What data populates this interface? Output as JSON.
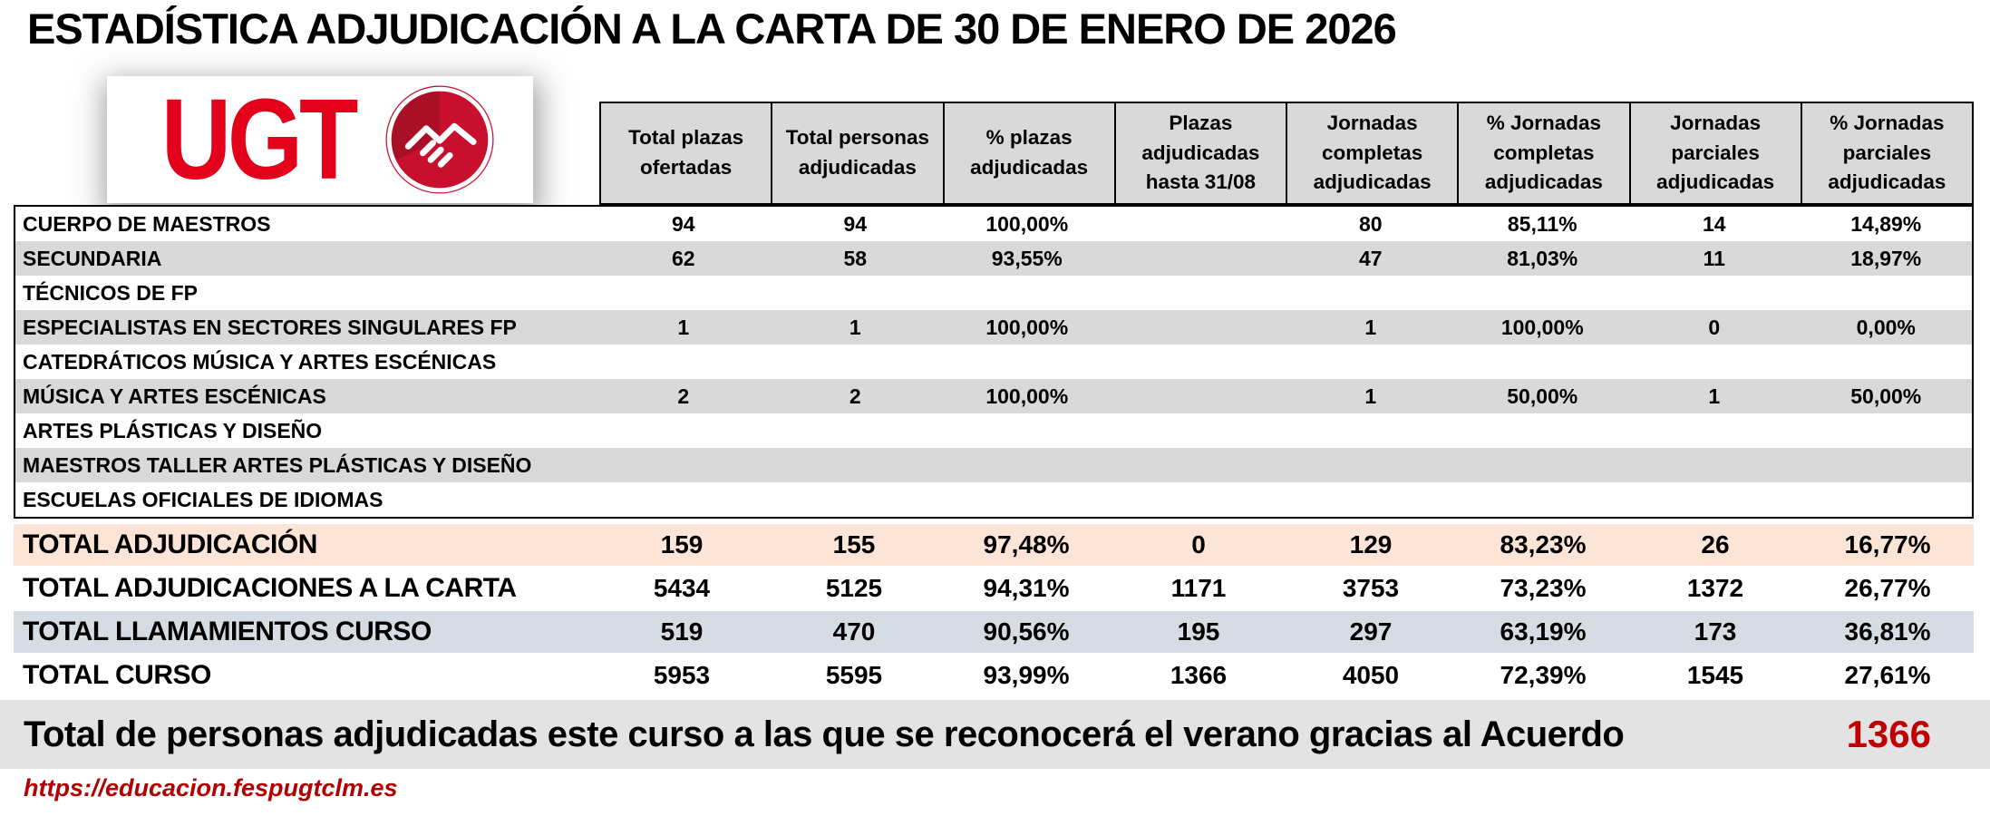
{
  "page": {
    "title": "ESTADÍSTICA ADJUDICACIÓN A LA CARTA DE 30 DE ENERO DE 2026"
  },
  "logo": {
    "text": "UGT",
    "icon": "handshake"
  },
  "table": {
    "column_headers": [
      "Total plazas ofertadas",
      "Total personas adjudicadas",
      "% plazas adjudicadas",
      "Plazas adjudicadas hasta 31/08",
      "Jornadas completas adjudicadas",
      "% Jornadas completas adjudicadas",
      "Jornadas parciales adjudicadas",
      "% Jornadas parciales adjudicadas"
    ],
    "rows": [
      {
        "label": "CUERPO DE MAESTROS",
        "values": [
          "94",
          "94",
          "100,00%",
          "",
          "80",
          "85,11%",
          "14",
          "14,89%"
        ]
      },
      {
        "label": "SECUNDARIA",
        "values": [
          "62",
          "58",
          "93,55%",
          "",
          "47",
          "81,03%",
          "11",
          "18,97%"
        ]
      },
      {
        "label": "TÉCNICOS DE FP",
        "values": [
          "",
          "",
          "",
          "",
          "",
          "",
          "",
          ""
        ]
      },
      {
        "label": "ESPECIALISTAS EN SECTORES SINGULARES FP",
        "values": [
          "1",
          "1",
          "100,00%",
          "",
          "1",
          "100,00%",
          "0",
          "0,00%"
        ]
      },
      {
        "label": "CATEDRÁTICOS MÚSICA Y ARTES ESCÉNICAS",
        "values": [
          "",
          "",
          "",
          "",
          "",
          "",
          "",
          ""
        ]
      },
      {
        "label": "MÚSICA Y ARTES ESCÉNICAS",
        "values": [
          "2",
          "2",
          "100,00%",
          "",
          "1",
          "50,00%",
          "1",
          "50,00%"
        ]
      },
      {
        "label": "ARTES PLÁSTICAS Y DISEÑO",
        "values": [
          "",
          "",
          "",
          "",
          "",
          "",
          "",
          ""
        ]
      },
      {
        "label": "MAESTROS TALLER ARTES PLÁSTICAS Y DISEÑO",
        "values": [
          "",
          "",
          "",
          "",
          "",
          "",
          "",
          ""
        ]
      },
      {
        "label": "ESCUELAS OFICIALES DE IDIOMAS",
        "values": [
          "",
          "",
          "",
          "",
          "",
          "",
          "",
          ""
        ]
      }
    ],
    "totals": [
      {
        "label": "TOTAL ADJUDICACIÓN",
        "values": [
          "159",
          "155",
          "97,48%",
          "0",
          "129",
          "83,23%",
          "26",
          "16,77%"
        ],
        "bg": "#fce4d6"
      },
      {
        "label": "TOTAL ADJUDICACIONES A LA CARTA",
        "values": [
          "5434",
          "5125",
          "94,31%",
          "1171",
          "3753",
          "73,23%",
          "1372",
          "26,77%"
        ],
        "bg": "#ffffff"
      },
      {
        "label": "TOTAL LLAMAMIENTOS CURSO",
        "values": [
          "519",
          "470",
          "90,56%",
          "195",
          "297",
          "63,19%",
          "173",
          "36,81%"
        ],
        "bg": "#d6dce4"
      },
      {
        "label": "TOTAL CURSO",
        "values": [
          "5953",
          "5595",
          "93,99%",
          "1366",
          "4050",
          "72,39%",
          "1545",
          "27,61%"
        ],
        "bg": "#ffffff"
      }
    ]
  },
  "footer": {
    "summary_text": "Total de personas adjudicadas este curso a las que se reconocerá el verano gracias al Acuerdo",
    "summary_value": "1366",
    "url": "https://educacion.fespugtclm.es"
  },
  "colors": {
    "ugt_red": "#e3001b",
    "circle_red": "#c8102e",
    "accent_dark_red": "#c00000",
    "header_bg": "#d9d9d9",
    "stripe_bg": "#d9d9d9",
    "total_highlight_bg": "#fce4d6",
    "total_blue_bg": "#d6dce4",
    "band_bg": "#e4e3e3"
  }
}
